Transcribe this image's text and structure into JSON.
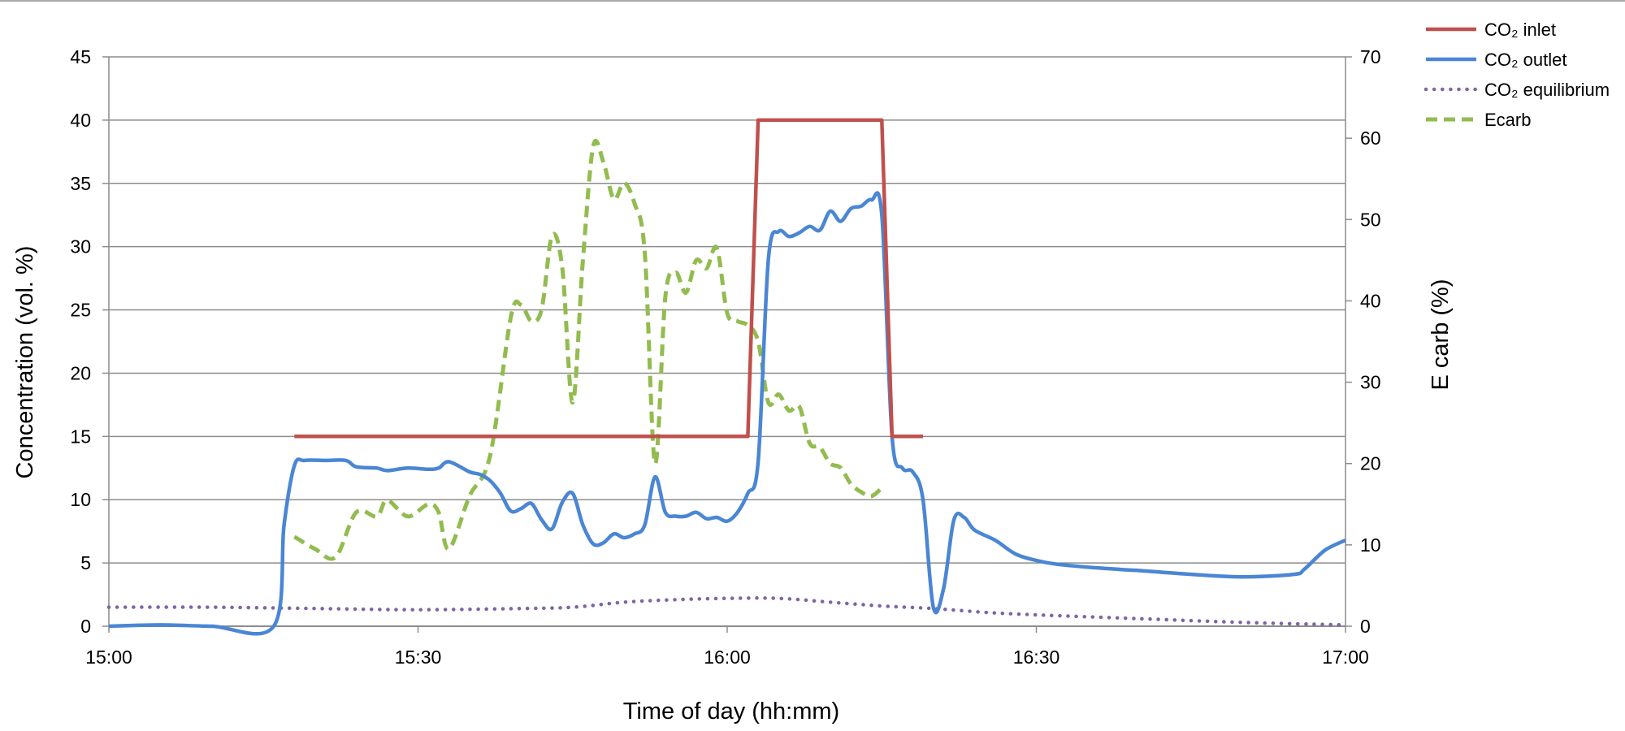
{
  "chart_data": {
    "type": "line",
    "x_axis": {
      "label": "Time of day (hh:mm)",
      "ticks": [
        "15:00",
        "15:30",
        "16:00",
        "16:30",
        "17:00"
      ],
      "range": [
        "15:00",
        "17:00"
      ]
    },
    "y_left": {
      "label": "Concentration (vol. %)",
      "ylim": [
        0,
        45
      ],
      "ticks": [
        "0",
        "5",
        "10",
        "15",
        "20",
        "25",
        "30",
        "35",
        "40",
        "45"
      ]
    },
    "y_right": {
      "label": "E carb (%)",
      "ylim": [
        0,
        70
      ],
      "ticks": [
        "0",
        "10",
        "20",
        "30",
        "40",
        "50",
        "60",
        "70"
      ]
    },
    "grid": "horizontal",
    "legend_position": "top-right",
    "series": [
      {
        "name": "CO₂ inlet",
        "axis": "left",
        "color": "#C0504D",
        "style": "solid",
        "points": [
          [
            "15:18",
            15
          ],
          [
            "16:02",
            15
          ],
          [
            "16:03",
            40
          ],
          [
            "16:15",
            40
          ],
          [
            "16:16",
            15
          ],
          [
            "16:19",
            15
          ]
        ]
      },
      {
        "name": "CO₂ outlet",
        "axis": "left",
        "color": "#4A86D4",
        "style": "solid",
        "points": [
          [
            "15:00",
            0
          ],
          [
            "15:05",
            0.1
          ],
          [
            "15:10",
            0
          ],
          [
            "15:16",
            0
          ],
          [
            "15:17",
            8
          ],
          [
            "15:18",
            12.7
          ],
          [
            "15:19",
            13.1
          ],
          [
            "15:21",
            13.1
          ],
          [
            "15:23",
            13.1
          ],
          [
            "15:24",
            12.6
          ],
          [
            "15:26",
            12.5
          ],
          [
            "15:27",
            12.3
          ],
          [
            "15:29",
            12.5
          ],
          [
            "15:31",
            12.4
          ],
          [
            "15:32",
            12.5
          ],
          [
            "15:33",
            13
          ],
          [
            "15:35",
            12.2
          ],
          [
            "15:36",
            12
          ],
          [
            "15:37",
            11.5
          ],
          [
            "15:38",
            10.5
          ],
          [
            "15:39",
            9.1
          ],
          [
            "15:40",
            9.3
          ],
          [
            "15:41",
            9.7
          ],
          [
            "15:42",
            8.4
          ],
          [
            "15:43",
            7.7
          ],
          [
            "15:44",
            9.8
          ],
          [
            "15:45",
            10.5
          ],
          [
            "15:46",
            8
          ],
          [
            "15:47",
            6.5
          ],
          [
            "15:48",
            6.6
          ],
          [
            "15:49",
            7.3
          ],
          [
            "15:50",
            7
          ],
          [
            "15:51",
            7.3
          ],
          [
            "15:52",
            8
          ],
          [
            "15:53",
            11.8
          ],
          [
            "15:54",
            9
          ],
          [
            "15:55",
            8.7
          ],
          [
            "15:56",
            8.7
          ],
          [
            "15:57",
            9
          ],
          [
            "15:58",
            8.5
          ],
          [
            "15:59",
            8.6
          ],
          [
            "16:00",
            8.3
          ],
          [
            "16:01",
            9
          ],
          [
            "16:02",
            10.5
          ],
          [
            "16:03",
            13
          ],
          [
            "16:04",
            29
          ],
          [
            "16:05",
            31.2
          ],
          [
            "16:06",
            30.8
          ],
          [
            "16:07",
            31.1
          ],
          [
            "16:08",
            31.6
          ],
          [
            "16:09",
            31.3
          ],
          [
            "16:10",
            32.8
          ],
          [
            "16:11",
            32
          ],
          [
            "16:12",
            33
          ],
          [
            "16:13",
            33.2
          ],
          [
            "16:14",
            33.7
          ],
          [
            "16:15",
            32.5
          ],
          [
            "16:16",
            15
          ],
          [
            "16:17",
            12.5
          ],
          [
            "16:18",
            12.2
          ],
          [
            "16:19",
            10
          ],
          [
            "16:20",
            1.5
          ],
          [
            "16:21",
            3
          ],
          [
            "16:22",
            8.4
          ],
          [
            "16:23",
            8.6
          ],
          [
            "16:24",
            7.6
          ],
          [
            "16:26",
            6.8
          ],
          [
            "16:28",
            5.7
          ],
          [
            "16:30",
            5.2
          ],
          [
            "16:32",
            4.9
          ],
          [
            "16:36",
            4.6
          ],
          [
            "16:40",
            4.4
          ],
          [
            "16:45",
            4.1
          ],
          [
            "16:50",
            3.9
          ],
          [
            "16:55",
            4.1
          ],
          [
            "16:56",
            4.5
          ],
          [
            "16:58",
            6
          ],
          [
            "17:00",
            6.8
          ]
        ]
      },
      {
        "name": "CO₂ equilibrium",
        "axis": "left",
        "color": "#8064A2",
        "style": "dotted",
        "points": [
          [
            "15:00",
            1.5
          ],
          [
            "15:10",
            1.5
          ],
          [
            "15:20",
            1.4
          ],
          [
            "15:30",
            1.3
          ],
          [
            "15:40",
            1.4
          ],
          [
            "15:45",
            1.5
          ],
          [
            "15:50",
            1.9
          ],
          [
            "15:55",
            2.1
          ],
          [
            "16:00",
            2.2
          ],
          [
            "16:05",
            2.2
          ],
          [
            "16:10",
            1.9
          ],
          [
            "16:15",
            1.6
          ],
          [
            "16:20",
            1.4
          ],
          [
            "16:25",
            1.1
          ],
          [
            "16:30",
            0.9
          ],
          [
            "16:40",
            0.6
          ],
          [
            "16:50",
            0.3
          ],
          [
            "17:00",
            0.1
          ]
        ]
      },
      {
        "name": "Ecarb",
        "axis": "right",
        "color": "#92BC4F",
        "style": "dashed",
        "points": [
          [
            "15:18",
            11
          ],
          [
            "15:20",
            9.5
          ],
          [
            "15:22",
            8.5
          ],
          [
            "15:24",
            14
          ],
          [
            "15:26",
            13.5
          ],
          [
            "15:27",
            15.5
          ],
          [
            "15:29",
            13.5
          ],
          [
            "15:31",
            15
          ],
          [
            "15:32",
            14
          ],
          [
            "15:33",
            9.5
          ],
          [
            "15:35",
            16
          ],
          [
            "15:37",
            21
          ],
          [
            "15:39",
            38
          ],
          [
            "15:40",
            39.5
          ],
          [
            "15:41",
            37.5
          ],
          [
            "15:42",
            39
          ],
          [
            "15:43",
            48
          ],
          [
            "15:44",
            44
          ],
          [
            "15:45",
            27.5
          ],
          [
            "15:46",
            45
          ],
          [
            "15:47",
            59
          ],
          [
            "15:48",
            57
          ],
          [
            "15:49",
            52.5
          ],
          [
            "15:50",
            54.5
          ],
          [
            "15:51",
            52
          ],
          [
            "15:52",
            46
          ],
          [
            "15:53",
            20
          ],
          [
            "15:54",
            40.5
          ],
          [
            "15:55",
            43.5
          ],
          [
            "15:56",
            41
          ],
          [
            "15:57",
            45
          ],
          [
            "15:58",
            44
          ],
          [
            "15:59",
            46.5
          ],
          [
            "16:00",
            38.5
          ],
          [
            "16:01",
            37.5
          ],
          [
            "16:02",
            37
          ],
          [
            "16:03",
            35
          ],
          [
            "16:04",
            27.5
          ],
          [
            "16:05",
            28.5
          ],
          [
            "16:06",
            26.5
          ],
          [
            "16:07",
            27
          ],
          [
            "16:08",
            22.5
          ],
          [
            "16:09",
            22
          ],
          [
            "16:10",
            20
          ],
          [
            "16:11",
            19.5
          ],
          [
            "16:12",
            17.5
          ],
          [
            "16:13",
            16.5
          ],
          [
            "16:14",
            16
          ],
          [
            "16:15",
            17
          ]
        ]
      }
    ]
  }
}
